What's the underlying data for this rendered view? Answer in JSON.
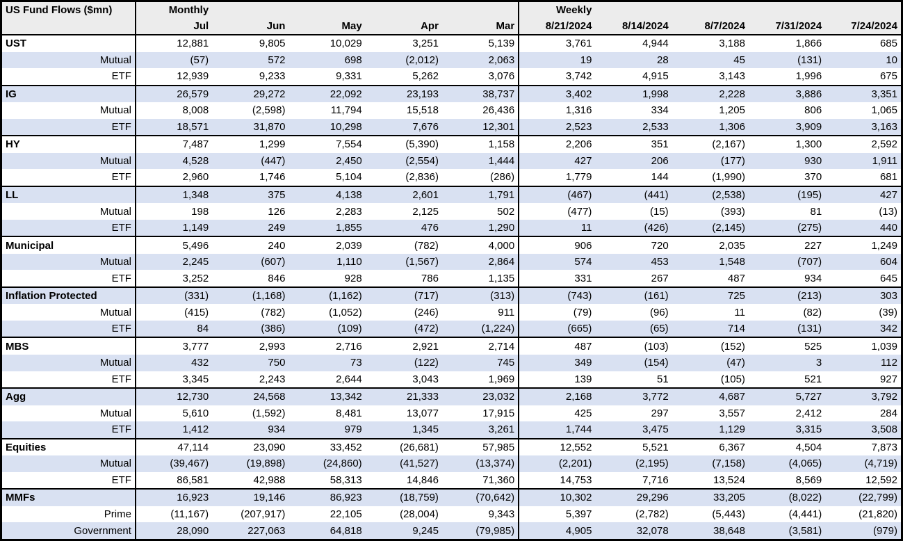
{
  "title": "US Fund Flows ($mn)",
  "header": {
    "monthly_label": "Monthly",
    "weekly_label": "Weekly"
  },
  "colors": {
    "band": "#d9e1f2",
    "header_bg": "#ececec",
    "border": "#000000"
  },
  "chart_data": {
    "type": "table",
    "title": "US Fund Flows ($mn)",
    "column_groups": [
      {
        "label": "Monthly",
        "columns": [
          "Jul",
          "Jun",
          "May",
          "Apr",
          "Mar"
        ]
      },
      {
        "label": "Weekly",
        "columns": [
          "8/21/2024",
          "8/14/2024",
          "8/7/2024",
          "7/31/2024",
          "7/24/2024"
        ]
      }
    ],
    "groups": [
      {
        "name": "UST",
        "rows": [
          {
            "label": "UST",
            "type": "group",
            "values": [
              "12,881",
              "9,805",
              "10,029",
              "3,251",
              "5,139",
              "3,761",
              "4,944",
              "3,188",
              "1,866",
              "685"
            ]
          },
          {
            "label": "Mutual",
            "type": "sub",
            "values": [
              "(57)",
              "572",
              "698",
              "(2,012)",
              "2,063",
              "19",
              "28",
              "45",
              "(131)",
              "10"
            ]
          },
          {
            "label": "ETF",
            "type": "sub",
            "values": [
              "12,939",
              "9,233",
              "9,331",
              "5,262",
              "3,076",
              "3,742",
              "4,915",
              "3,143",
              "1,996",
              "675"
            ]
          }
        ]
      },
      {
        "name": "IG",
        "rows": [
          {
            "label": "IG",
            "type": "group",
            "values": [
              "26,579",
              "29,272",
              "22,092",
              "23,193",
              "38,737",
              "3,402",
              "1,998",
              "2,228",
              "3,886",
              "3,351"
            ]
          },
          {
            "label": "Mutual",
            "type": "sub",
            "values": [
              "8,008",
              "(2,598)",
              "11,794",
              "15,518",
              "26,436",
              "1,316",
              "334",
              "1,205",
              "806",
              "1,065"
            ]
          },
          {
            "label": "ETF",
            "type": "sub",
            "values": [
              "18,571",
              "31,870",
              "10,298",
              "7,676",
              "12,301",
              "2,523",
              "2,533",
              "1,306",
              "3,909",
              "3,163"
            ]
          }
        ]
      },
      {
        "name": "HY",
        "rows": [
          {
            "label": "HY",
            "type": "group",
            "values": [
              "7,487",
              "1,299",
              "7,554",
              "(5,390)",
              "1,158",
              "2,206",
              "351",
              "(2,167)",
              "1,300",
              "2,592"
            ]
          },
          {
            "label": "Mutual",
            "type": "sub",
            "values": [
              "4,528",
              "(447)",
              "2,450",
              "(2,554)",
              "1,444",
              "427",
              "206",
              "(177)",
              "930",
              "1,911"
            ]
          },
          {
            "label": "ETF",
            "type": "sub",
            "values": [
              "2,960",
              "1,746",
              "5,104",
              "(2,836)",
              "(286)",
              "1,779",
              "144",
              "(1,990)",
              "370",
              "681"
            ]
          }
        ]
      },
      {
        "name": "LL",
        "rows": [
          {
            "label": "LL",
            "type": "group",
            "values": [
              "1,348",
              "375",
              "4,138",
              "2,601",
              "1,791",
              "(467)",
              "(441)",
              "(2,538)",
              "(195)",
              "427"
            ]
          },
          {
            "label": "Mutual",
            "type": "sub",
            "values": [
              "198",
              "126",
              "2,283",
              "2,125",
              "502",
              "(477)",
              "(15)",
              "(393)",
              "81",
              "(13)"
            ]
          },
          {
            "label": "ETF",
            "type": "sub",
            "values": [
              "1,149",
              "249",
              "1,855",
              "476",
              "1,290",
              "11",
              "(426)",
              "(2,145)",
              "(275)",
              "440"
            ]
          }
        ]
      },
      {
        "name": "Municipal",
        "rows": [
          {
            "label": "Municipal",
            "type": "group",
            "values": [
              "5,496",
              "240",
              "2,039",
              "(782)",
              "4,000",
              "906",
              "720",
              "2,035",
              "227",
              "1,249"
            ]
          },
          {
            "label": "Mutual",
            "type": "sub",
            "values": [
              "2,245",
              "(607)",
              "1,110",
              "(1,567)",
              "2,864",
              "574",
              "453",
              "1,548",
              "(707)",
              "604"
            ]
          },
          {
            "label": "ETF",
            "type": "sub",
            "values": [
              "3,252",
              "846",
              "928",
              "786",
              "1,135",
              "331",
              "267",
              "487",
              "934",
              "645"
            ]
          }
        ]
      },
      {
        "name": "Inflation Protected",
        "rows": [
          {
            "label": "Inflation Protected",
            "type": "group",
            "values": [
              "(331)",
              "(1,168)",
              "(1,162)",
              "(717)",
              "(313)",
              "(743)",
              "(161)",
              "725",
              "(213)",
              "303"
            ]
          },
          {
            "label": "Mutual",
            "type": "sub",
            "values": [
              "(415)",
              "(782)",
              "(1,052)",
              "(246)",
              "911",
              "(79)",
              "(96)",
              "11",
              "(82)",
              "(39)"
            ]
          },
          {
            "label": "ETF",
            "type": "sub",
            "values": [
              "84",
              "(386)",
              "(109)",
              "(472)",
              "(1,224)",
              "(665)",
              "(65)",
              "714",
              "(131)",
              "342"
            ]
          }
        ]
      },
      {
        "name": "MBS",
        "rows": [
          {
            "label": "MBS",
            "type": "group",
            "values": [
              "3,777",
              "2,993",
              "2,716",
              "2,921",
              "2,714",
              "487",
              "(103)",
              "(152)",
              "525",
              "1,039"
            ]
          },
          {
            "label": "Mutual",
            "type": "sub",
            "values": [
              "432",
              "750",
              "73",
              "(122)",
              "745",
              "349",
              "(154)",
              "(47)",
              "3",
              "112"
            ]
          },
          {
            "label": "ETF",
            "type": "sub",
            "values": [
              "3,345",
              "2,243",
              "2,644",
              "3,043",
              "1,969",
              "139",
              "51",
              "(105)",
              "521",
              "927"
            ]
          }
        ]
      },
      {
        "name": "Agg",
        "rows": [
          {
            "label": "Agg",
            "type": "group",
            "values": [
              "12,730",
              "24,568",
              "13,342",
              "21,333",
              "23,032",
              "2,168",
              "3,772",
              "4,687",
              "5,727",
              "3,792"
            ]
          },
          {
            "label": "Mutual",
            "type": "sub",
            "values": [
              "5,610",
              "(1,592)",
              "8,481",
              "13,077",
              "17,915",
              "425",
              "297",
              "3,557",
              "2,412",
              "284"
            ]
          },
          {
            "label": "ETF",
            "type": "sub",
            "values": [
              "1,412",
              "934",
              "979",
              "1,345",
              "3,261",
              "1,744",
              "3,475",
              "1,129",
              "3,315",
              "3,508"
            ]
          }
        ]
      },
      {
        "name": "Equities",
        "rows": [
          {
            "label": "Equities",
            "type": "group",
            "values": [
              "47,114",
              "23,090",
              "33,452",
              "(26,681)",
              "57,985",
              "12,552",
              "5,521",
              "6,367",
              "4,504",
              "7,873"
            ]
          },
          {
            "label": "Mutual",
            "type": "sub",
            "values": [
              "(39,467)",
              "(19,898)",
              "(24,860)",
              "(41,527)",
              "(13,374)",
              "(2,201)",
              "(2,195)",
              "(7,158)",
              "(4,065)",
              "(4,719)"
            ]
          },
          {
            "label": "ETF",
            "type": "sub",
            "values": [
              "86,581",
              "42,988",
              "58,313",
              "14,846",
              "71,360",
              "14,753",
              "7,716",
              "13,524",
              "8,569",
              "12,592"
            ]
          }
        ]
      },
      {
        "name": "MMFs",
        "rows": [
          {
            "label": "MMFs",
            "type": "group",
            "values": [
              "16,923",
              "19,146",
              "86,923",
              "(18,759)",
              "(70,642)",
              "10,302",
              "29,296",
              "33,205",
              "(8,022)",
              "(22,799)"
            ]
          },
          {
            "label": "Prime",
            "type": "sub",
            "values": [
              "(11,167)",
              "(207,917)",
              "22,105",
              "(28,004)",
              "9,343",
              "5,397",
              "(2,782)",
              "(5,443)",
              "(4,441)",
              "(21,820)"
            ]
          },
          {
            "label": "Government",
            "type": "sub",
            "values": [
              "28,090",
              "227,063",
              "64,818",
              "9,245",
              "(79,985)",
              "4,905",
              "32,078",
              "38,648",
              "(3,581)",
              "(979)"
            ]
          }
        ]
      }
    ]
  }
}
